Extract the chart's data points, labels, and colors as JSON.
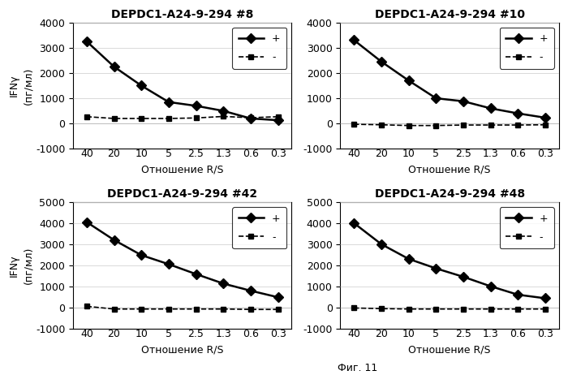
{
  "subplots": [
    {
      "title": "DEPDC1-A24-9-294 #8",
      "pos_data": [
        3250,
        2250,
        1500,
        850,
        700,
        500,
        200,
        130
      ],
      "neg_data": [
        270,
        200,
        200,
        200,
        220,
        280,
        230,
        270
      ],
      "ylim": [
        -1000,
        4000
      ],
      "yticks": [
        -1000,
        0,
        1000,
        2000,
        3000,
        4000
      ]
    },
    {
      "title": "DEPDC1-A24-9-294 #10",
      "pos_data": [
        3300,
        2450,
        1700,
        1000,
        880,
        600,
        400,
        230
      ],
      "neg_data": [
        -30,
        -50,
        -80,
        -80,
        -60,
        -60,
        -60,
        -50
      ],
      "ylim": [
        -1000,
        4000
      ],
      "yticks": [
        -1000,
        0,
        1000,
        2000,
        3000,
        4000
      ]
    },
    {
      "title": "DEPDC1-A24-9-294 #42",
      "pos_data": [
        4050,
        3200,
        2480,
        2050,
        1580,
        1130,
        790,
        480
      ],
      "neg_data": [
        50,
        -80,
        -80,
        -80,
        -80,
        -80,
        -100,
        -100
      ],
      "ylim": [
        -1000,
        5000
      ],
      "yticks": [
        -1000,
        0,
        1000,
        2000,
        3000,
        4000,
        5000
      ]
    },
    {
      "title": "DEPDC1-A24-9-294 #48",
      "pos_data": [
        4000,
        3000,
        2300,
        1850,
        1450,
        1000,
        600,
        430
      ],
      "neg_data": [
        -30,
        -60,
        -80,
        -80,
        -80,
        -80,
        -80,
        -80
      ],
      "ylim": [
        -1000,
        5000
      ],
      "yticks": [
        -1000,
        0,
        1000,
        2000,
        3000,
        4000,
        5000
      ]
    }
  ],
  "x_labels": [
    "40",
    "20",
    "10",
    "5",
    "2.5",
    "1.3",
    "0.6",
    "0.3"
  ],
  "xlabel": "Отношение R/S",
  "ylabel_line1": "IFNγ",
  "ylabel_line2": "(пг/мл)",
  "legend_pos": "+",
  "legend_neg": "-",
  "caption": "Фиг. 11",
  "line_color": "black",
  "bg_color": "white",
  "title_fontsize": 10,
  "label_fontsize": 9,
  "tick_fontsize": 9
}
